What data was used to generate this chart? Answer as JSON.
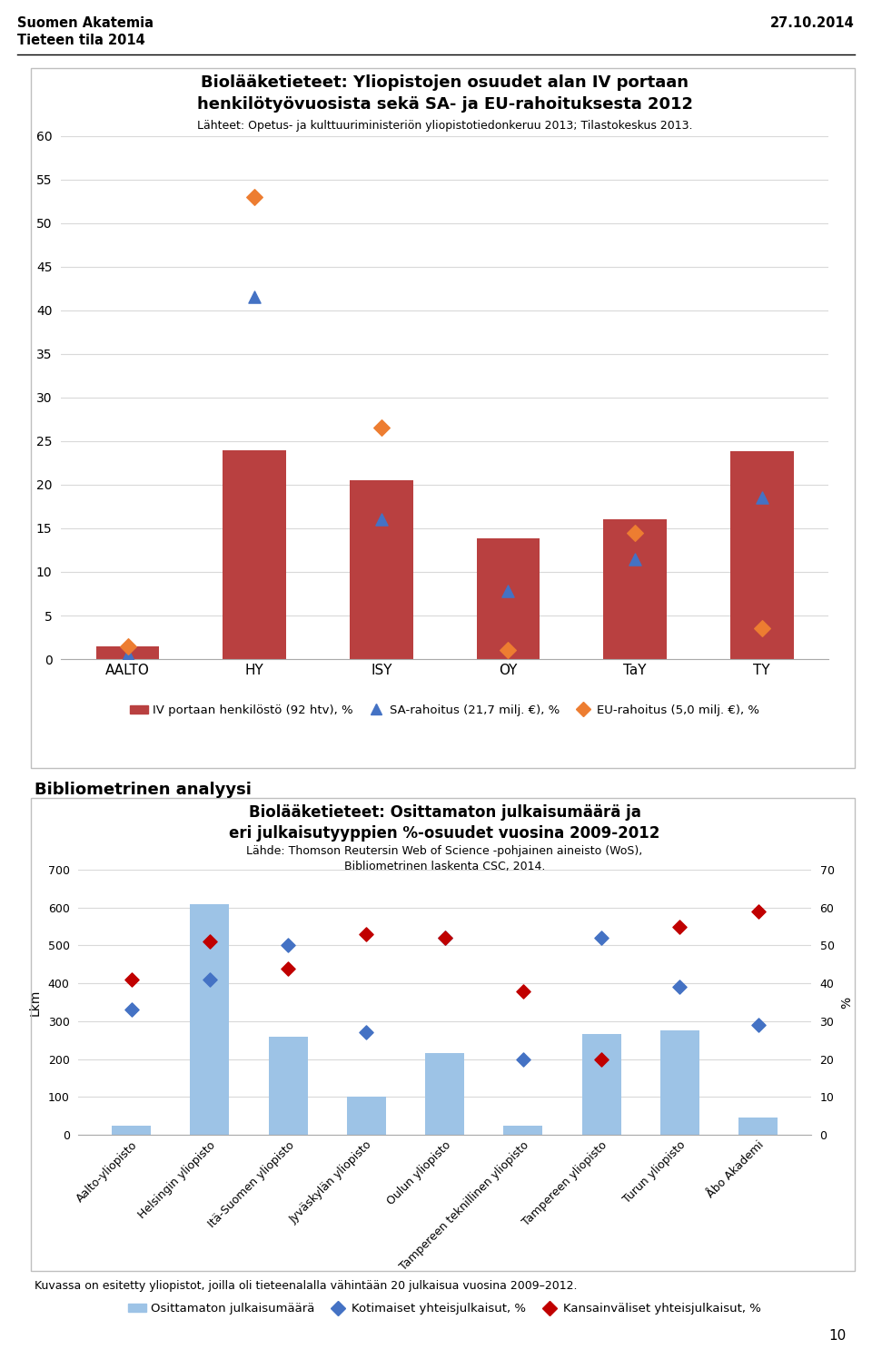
{
  "header_left_line1": "Suomen Akatemia",
  "header_left_line2": "Tieteen tila 2014",
  "header_right": "27.10.2014",
  "chart1": {
    "title_line1": "Biolääketieteet: Yliopistojen osuudet alan IV portaan",
    "title_line2": "henkilötyövuosista sekä SA- ja EU-rahoituksesta 2012",
    "subtitle": "Lähteet: Opetus- ja kulttuuriministeriön yliopistotiedonkeruu 2013; Tilastokeskus 2013.",
    "categories": [
      "AALTO",
      "HY",
      "ISY",
      "OY",
      "TaY",
      "TY"
    ],
    "bar_values": [
      1.5,
      24.0,
      20.5,
      13.8,
      16.0,
      23.8
    ],
    "sa_values": [
      0.5,
      41.5,
      16.0,
      7.8,
      11.5,
      18.5
    ],
    "eu_values": [
      1.5,
      53.0,
      26.5,
      1.0,
      14.5,
      3.5
    ],
    "bar_color": "#b94040",
    "sa_color": "#4472c4",
    "eu_color": "#ed7d31",
    "ylim": [
      0,
      60
    ],
    "yticks": [
      0,
      5,
      10,
      15,
      20,
      25,
      30,
      35,
      40,
      45,
      50,
      55,
      60
    ],
    "legend_bar": "IV portaan henkilöstö (92 htv), %",
    "legend_sa": "SA-rahoitus (21,7 milj. €), %",
    "legend_eu": "EU-rahoitus (5,0 milj. €), %"
  },
  "section_title": "Bibliometrinen analyysi",
  "chart2": {
    "title_line1": "Biolääketieteet: Osittamaton julkaisumäärä ja",
    "title_line2": "eri julkaisutyyppien %-osuudet vuosina 2009-2012",
    "subtitle_line1": "Lähde: Thomson Reutersin Web of Science -pohjainen aineisto (WoS),",
    "subtitle_line2": "Bibliometrinen laskenta CSC, 2014.",
    "categories": [
      "Aalto-yliopisto",
      "Helsingin yliopisto",
      "Itä-Suomen yliopisto",
      "Jyväskylän yliopisto",
      "Oulun yliopisto",
      "Tampereen teknillinen yliopisto",
      "Tampereen yliopisto",
      "Turun yliopisto",
      "Åbo Akademi"
    ],
    "bar_values": [
      25,
      610,
      260,
      100,
      215,
      25,
      265,
      275,
      45
    ],
    "kotimaiset_values": [
      33,
      41,
      50,
      27,
      52,
      20,
      52,
      39,
      29
    ],
    "kansainvaliset_values": [
      41,
      51,
      44,
      53,
      52,
      38,
      20,
      55,
      59
    ],
    "bar_color": "#9dc3e6",
    "kotimaiset_color": "#4472c4",
    "kansainvaliset_color": "#c00000",
    "ylim_left": [
      0,
      700
    ],
    "ylim_right": [
      0,
      70
    ],
    "yticks_left": [
      0,
      100,
      200,
      300,
      400,
      500,
      600,
      700
    ],
    "yticks_right": [
      0,
      10,
      20,
      30,
      40,
      50,
      60,
      70
    ],
    "ylabel_left": "Lkm",
    "ylabel_right": "%",
    "legend_bar": "Osittamaton julkaisumäärä",
    "legend_kotimaiset": "Kotimaiset yhteisjulkaisut, %",
    "legend_kansainvaliset": "Kansainväliset yhteisjulkaisut, %",
    "footer": "Kuvassa on esitetty yliopistot, joilla oli tieteenalalla vähintään 20 julkaisua vuosina 2009–2012."
  },
  "page_number": "10",
  "bg_color": "#ffffff",
  "box_border_color": "#bfbfbf",
  "grid_color": "#d9d9d9"
}
